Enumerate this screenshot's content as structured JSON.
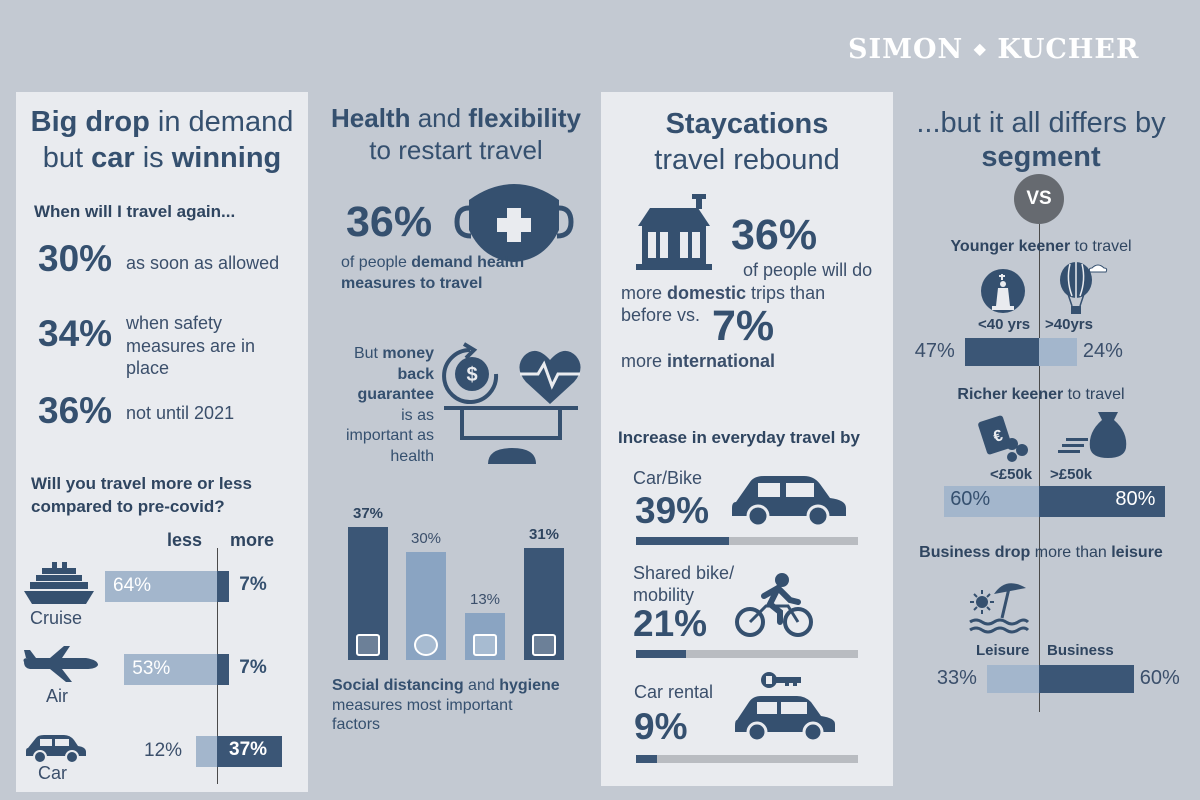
{
  "brand": {
    "logo_left": "SIMON",
    "logo_right": "KUCHER"
  },
  "col1": {
    "title_a": "Big drop",
    "title_b": " in demand",
    "title_c": "but ",
    "title_d": "car",
    "title_e": " is ",
    "title_f": "winning",
    "q1": "When will I travel again...",
    "stats": [
      {
        "pct": "30%",
        "text": "as soon as allowed"
      },
      {
        "pct": "34%",
        "text": "when safety measures are in place"
      },
      {
        "pct": "36%",
        "text": "not until 2021"
      }
    ],
    "q2_line1": "Will you travel more or less",
    "q2_line2": "compared to pre-covid?",
    "less_label": "less",
    "more_label": "more",
    "rows": [
      {
        "label": "Cruise",
        "less": "64%",
        "more": "7%",
        "less_value": 64,
        "more_value": 7
      },
      {
        "label": "Air",
        "less": "53%",
        "more": "7%",
        "less_value": 53,
        "more_value": 7
      },
      {
        "label": "Car",
        "less": "12%",
        "more": "37%",
        "less_value": 12,
        "more_value": 37
      }
    ]
  },
  "col2": {
    "title_a": "Health",
    "title_b": " and ",
    "title_c": "flexibility",
    "title_d": "to restart travel",
    "stat_pct": "36%",
    "stat_a": "of people ",
    "stat_b": "demand health",
    "stat_c": "measures to travel",
    "money_a": "But ",
    "money_b": "money",
    "money_c": "back",
    "money_d": "guarantee",
    "money_e": "is as",
    "money_f": "important as",
    "money_g": "health",
    "bars": [
      {
        "value_label": "37%",
        "value": 37,
        "icon": "person-distance-icon",
        "dark": true
      },
      {
        "value_label": "30%",
        "value": 30,
        "icon": "mask-icon",
        "dark": false
      },
      {
        "value_label": "13%",
        "value": 13,
        "icon": "passport-icon",
        "dark": false
      },
      {
        "value_label": "31%",
        "value": 31,
        "icon": "sanitizer-icon",
        "dark": true
      }
    ],
    "foot_a": "Social distancing",
    "foot_b": " and ",
    "foot_c": "hygiene",
    "foot_d": "measures most important",
    "foot_e": "factors"
  },
  "col3": {
    "title_a": "Staycations",
    "title_b": "travel rebound",
    "pct1": "36%",
    "t1": "of people will do",
    "t2a": "more ",
    "t2b": "domestic",
    "t2c": " trips than",
    "t3": "before vs.",
    "pct2": "7%",
    "t4a": "more ",
    "t4b": "international",
    "increase": "Increase in everyday travel by",
    "items": [
      {
        "label_1": "Car/Bike",
        "label_2": "",
        "pct": "39%",
        "value": 39,
        "icon": "car-icon"
      },
      {
        "label_1": "Shared bike/",
        "label_2": "mobility",
        "pct": "21%",
        "value": 21,
        "icon": "bicycle-icon"
      },
      {
        "label_1": "Car rental",
        "label_2": "",
        "pct": "9%",
        "value": 9,
        "icon": "car-rental-icon"
      }
    ]
  },
  "col4": {
    "title_a": "...but it all differs by",
    "title_b": "segment",
    "vs": "VS",
    "s1_a": "Younger keener",
    "s1_b": " to travel",
    "s1_left": "<40 yrs",
    "s1_right": ">40yrs",
    "s1_lv": "47%",
    "s1_rv": "24%",
    "s1_l": 47,
    "s1_r": 24,
    "s2_a": "Richer keener",
    "s2_b": " to travel",
    "s2_left": "<£50k",
    "s2_right": ">£50k",
    "s2_lv": "60%",
    "s2_rv": "80%",
    "s2_l": 60,
    "s2_r": 80,
    "s3_a": "Business drop",
    "s3_b": " more than ",
    "s3_c": "leisure",
    "s3_left": "Leisure",
    "s3_right": "Business",
    "s3_lv": "33%",
    "s3_rv": "60%",
    "s3_l": 33,
    "s3_r": 60
  },
  "colors": {
    "navy": "#35506f",
    "light_bar": "#a3b6cc",
    "grey_bar": "#b9bcc1",
    "panel": "#e9ebef",
    "background": "#c3c9d2"
  }
}
